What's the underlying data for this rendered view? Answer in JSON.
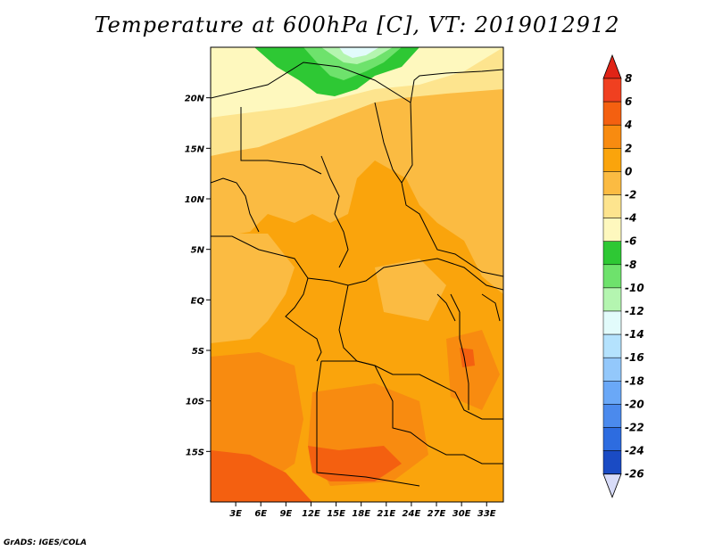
{
  "title": "Temperature at 600hPa [C], VT: 2019012912",
  "credit": "GrADS: IGES/COLA",
  "map": {
    "lon_range": [
      0,
      35
    ],
    "lat_range": [
      -20,
      25
    ],
    "lat_ticks": [
      {
        "value": 20,
        "label": "20N"
      },
      {
        "value": 15,
        "label": "15N"
      },
      {
        "value": 10,
        "label": "10N"
      },
      {
        "value": 5,
        "label": "5N"
      },
      {
        "value": 0,
        "label": "EQ"
      },
      {
        "value": -5,
        "label": "5S"
      },
      {
        "value": -10,
        "label": "10S"
      },
      {
        "value": -15,
        "label": "15S"
      }
    ],
    "lon_ticks": [
      {
        "value": 3,
        "label": "3E"
      },
      {
        "value": 6,
        "label": "6E"
      },
      {
        "value": 9,
        "label": "9E"
      },
      {
        "value": 12,
        "label": "12E"
      },
      {
        "value": 15,
        "label": "15E"
      },
      {
        "value": 18,
        "label": "18E"
      },
      {
        "value": 21,
        "label": "21E"
      },
      {
        "value": 24,
        "label": "24E"
      },
      {
        "value": 27,
        "label": "27E"
      },
      {
        "value": 30,
        "label": "30E"
      },
      {
        "value": 33,
        "label": "33E"
      }
    ]
  },
  "colorbar": {
    "levels": [
      {
        "label": "8",
        "color": "#f04020"
      },
      {
        "label": "6",
        "color": "#f46010"
      },
      {
        "label": "4",
        "color": "#f88b10"
      },
      {
        "label": "2",
        "color": "#faa40c"
      },
      {
        "label": "0",
        "color": "#fbbb42"
      },
      {
        "label": "-2",
        "color": "#fde48e"
      },
      {
        "label": "-4",
        "color": "#fef8be"
      },
      {
        "label": "-6",
        "color": "#2ec834"
      },
      {
        "label": "-8",
        "color": "#6ee26c"
      },
      {
        "label": "-10",
        "color": "#b4f5b0"
      },
      {
        "label": "-12",
        "color": "#e2fbfb"
      },
      {
        "label": "-14",
        "color": "#b4e2fd"
      },
      {
        "label": "-16",
        "color": "#93c8fb"
      },
      {
        "label": "-18",
        "color": "#6aa8f7"
      },
      {
        "label": "-20",
        "color": "#4b8aed"
      },
      {
        "label": "-22",
        "color": "#2d6ce0"
      },
      {
        "label": "-24",
        "color": "#1a4bc4"
      },
      {
        "label": "-26",
        "color": "#0d30a6"
      }
    ],
    "over_color": "#e02416",
    "under_color": "#d8dcf8",
    "bottom_class_color": "#0b1a78"
  }
}
